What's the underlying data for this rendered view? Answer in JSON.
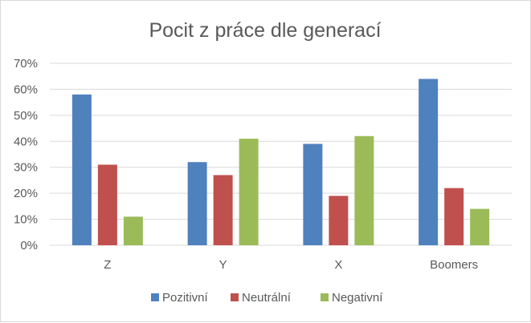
{
  "chart_data": {
    "type": "bar",
    "title": "Pocit z práce dle generací",
    "xlabel": "",
    "ylabel": "",
    "categories": [
      "Z",
      "Y",
      "X",
      "Boomers"
    ],
    "series": [
      {
        "name": "Pozitivní",
        "color": "#4f81bd",
        "values": [
          58,
          32,
          39,
          64
        ]
      },
      {
        "name": "Neutrální",
        "color": "#c0504d",
        "values": [
          31,
          27,
          19,
          22
        ]
      },
      {
        "name": "Negativní",
        "color": "#9bbb59",
        "values": [
          11,
          41,
          42,
          14
        ]
      }
    ],
    "ylim": [
      0,
      70
    ],
    "yticks": [
      "0%",
      "10%",
      "20%",
      "30%",
      "40%",
      "50%",
      "60%",
      "70%"
    ],
    "grid": true,
    "legend_position": "bottom"
  }
}
